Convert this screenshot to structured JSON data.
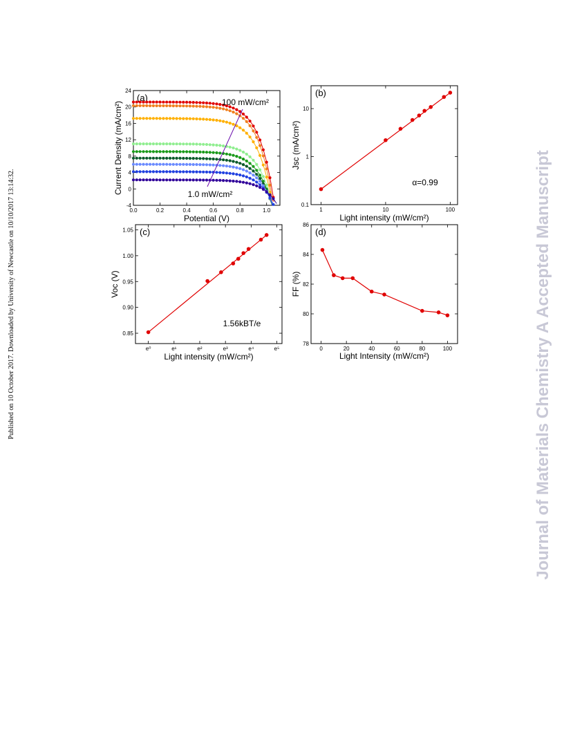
{
  "side_left_text": "Published on 10 October 2017. Downloaded by University of Newcastle on 10/10/2017 13:14:32.",
  "side_right_text": "Journal of Materials Chemistry A Accepted Manuscript",
  "chart_data": [
    {
      "panel": "(a)",
      "type": "line",
      "xlabel": "Potential (V)",
      "ylabel": "Current Density (mA/cm²)",
      "xlim": [
        0.0,
        1.1
      ],
      "ylim": [
        -4,
        24
      ],
      "xticks": [
        "0.0",
        "0.2",
        "0.4",
        "0.6",
        "0.8",
        "1.0"
      ],
      "yticks": [
        "-4",
        "0",
        "4",
        "8",
        "12",
        "16",
        "20",
        "24"
      ],
      "annotations": [
        "100 mW/cm²",
        "1.0 mW/cm²"
      ],
      "series": [
        {
          "jsc": 21.2,
          "voc": 1.04,
          "color": "#e00000"
        },
        {
          "jsc": 20.3,
          "voc": 1.03,
          "color": "#f08020"
        },
        {
          "jsc": 17.2,
          "voc": 1.02,
          "color": "#ffb000"
        },
        {
          "jsc": 11.0,
          "voc": 1.01,
          "color": "#90ee90"
        },
        {
          "jsc": 9.1,
          "voc": 1.0,
          "color": "#1a9a1a"
        },
        {
          "jsc": 7.5,
          "voc": 0.995,
          "color": "#0a5a2a"
        },
        {
          "jsc": 6.0,
          "voc": 0.99,
          "color": "#6a8aff"
        },
        {
          "jsc": 4.2,
          "voc": 0.98,
          "color": "#2040e0"
        },
        {
          "jsc": 2.2,
          "voc": 0.97,
          "color": "#30009a"
        }
      ]
    },
    {
      "panel": "(b)",
      "type": "scatter",
      "xlabel": "Light intensity (mW/cm²)",
      "ylabel": "Jsc (mA/cm²)",
      "xscale": "log",
      "yscale": "log",
      "xlim": [
        0.7,
        130
      ],
      "ylim": [
        0.1,
        30
      ],
      "xticks": [
        "1",
        "10",
        "100"
      ],
      "yticks": [
        "0.1",
        "1",
        "10"
      ],
      "annotation": "α=0.99",
      "x": [
        1,
        10,
        17,
        26,
        33,
        40,
        50,
        80,
        100
      ],
      "y": [
        0.21,
        2.2,
        3.8,
        5.8,
        7.2,
        9.0,
        10.8,
        17.5,
        21.5
      ]
    },
    {
      "panel": "(c)",
      "type": "scatter",
      "xlabel": "Light intensity (mW/cm²)",
      "ylabel": "Voc (V)",
      "xlim": [
        -0.5,
        5.2
      ],
      "ylim": [
        0.83,
        1.06
      ],
      "xticks": [
        "e⁰",
        "e¹",
        "e²",
        "e³",
        "e⁴",
        "e⁵"
      ],
      "yticks": [
        "0.85",
        "0.90",
        "0.95",
        "1.00",
        "1.05"
      ],
      "annotation": "1.56kBT/e",
      "x": [
        0,
        2.3,
        2.83,
        3.3,
        3.5,
        3.7,
        3.9,
        4.38,
        4.6
      ],
      "y": [
        0.852,
        0.951,
        0.968,
        0.985,
        0.994,
        1.005,
        1.013,
        1.031,
        1.04
      ]
    },
    {
      "panel": "(d)",
      "type": "line",
      "xlabel": "Light Intensity (mW/cm²)",
      "ylabel": "FF (%)",
      "xlim": [
        -8,
        108
      ],
      "ylim": [
        78,
        86
      ],
      "xticks": [
        "0",
        "20",
        "40",
        "60",
        "80",
        "100"
      ],
      "yticks": [
        "78",
        "80",
        "82",
        "84",
        "86"
      ],
      "x": [
        1,
        10,
        17,
        25,
        40,
        50,
        80,
        93,
        100
      ],
      "y": [
        84.3,
        82.6,
        82.4,
        82.4,
        81.5,
        81.3,
        80.2,
        80.1,
        79.9
      ]
    }
  ]
}
